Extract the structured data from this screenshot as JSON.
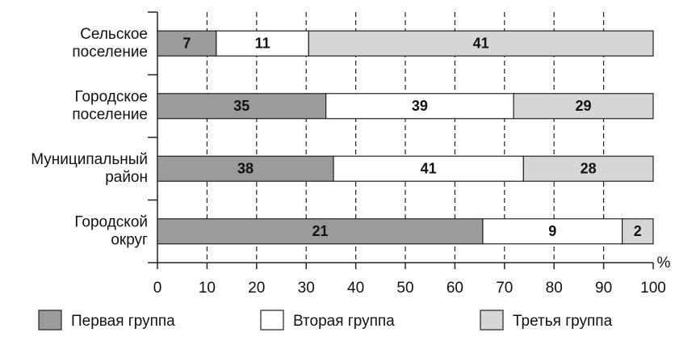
{
  "chart_data": {
    "type": "bar",
    "orientation": "horizontal",
    "stacked": "percent",
    "categories": [
      [
        "Сельское",
        "поселение"
      ],
      [
        "Городское",
        "поселение"
      ],
      [
        "Муниципальный",
        "район"
      ],
      [
        "Городской",
        "округ"
      ]
    ],
    "series": [
      {
        "name": "Первая группа",
        "color": "#9b9b9b",
        "values": [
          7,
          35,
          38,
          21
        ]
      },
      {
        "name": "Вторая группа",
        "color": "#ffffff",
        "values": [
          11,
          39,
          41,
          9
        ]
      },
      {
        "name": "Третья группа",
        "color": "#d6d6d6",
        "values": [
          41,
          29,
          28,
          2
        ]
      }
    ],
    "xlim": [
      0,
      100
    ],
    "xticks": [
      0,
      10,
      20,
      30,
      40,
      50,
      60,
      70,
      80,
      90,
      100
    ],
    "xlabel": "%",
    "grid": true,
    "legend": "bottom"
  }
}
